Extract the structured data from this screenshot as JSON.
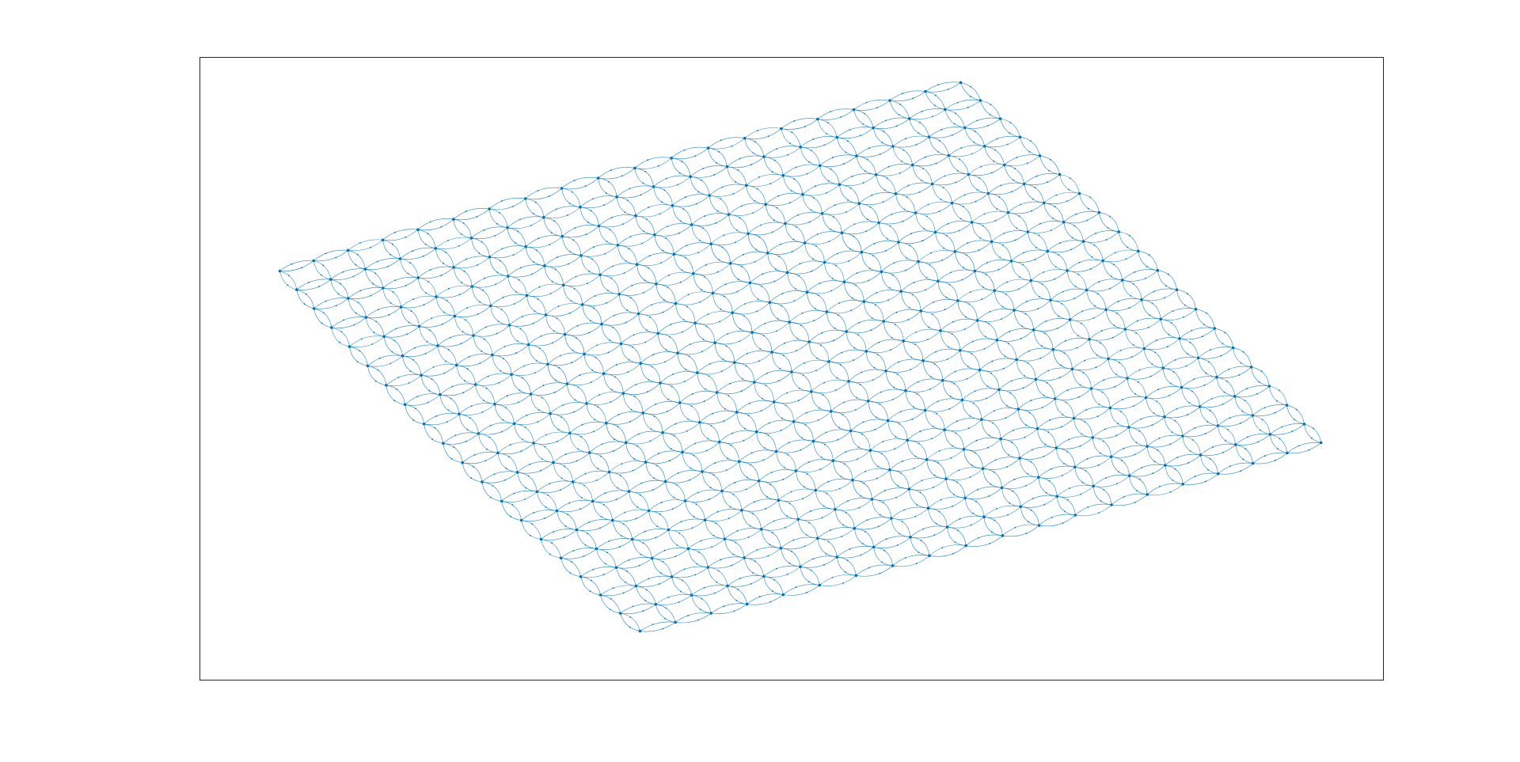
{
  "figure": {
    "background_color": "#ffffff",
    "axes_box": "shown",
    "axes_frame_color": "#262626",
    "ticks": "none"
  },
  "graph": {
    "type": "directed-graph",
    "layout": "isometric-grid",
    "edge_style": "curved-loops",
    "grid_rows": 20,
    "grid_cols": 20,
    "node_color": "#0072BD",
    "edge_color": "#0072BD",
    "arrowheads": true
  }
}
